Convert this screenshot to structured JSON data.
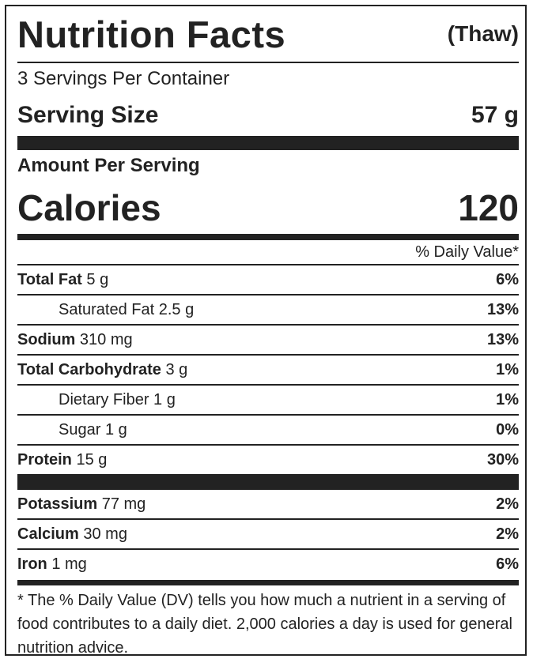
{
  "title": "Nutrition Facts",
  "variant": "(Thaw)",
  "servings": "3 Servings Per Container",
  "serving_size": {
    "label": "Serving Size",
    "value": "57 g"
  },
  "amount_per_serving": "Amount Per Serving",
  "calories": {
    "label": "Calories",
    "value": "120"
  },
  "dv_header": "% Daily Value*",
  "nutrients": [
    {
      "name": "Total Fat",
      "amount": "5 g",
      "dv": "6%",
      "children": [
        {
          "name": "Saturated Fat",
          "amount": "2.5 g",
          "dv": "13%"
        }
      ]
    },
    {
      "name": "Sodium",
      "amount": "310 mg",
      "dv": "13%"
    },
    {
      "name": "Total Carbohydrate",
      "amount": "3 g",
      "dv": "1%",
      "children": [
        {
          "name": "Dietary Fiber",
          "amount": "1 g",
          "dv": "1%"
        },
        {
          "name": "Sugar",
          "amount": "1 g",
          "dv": "0%"
        }
      ]
    },
    {
      "name": "Protein",
      "amount": "15 g",
      "dv": "30%"
    }
  ],
  "minerals": [
    {
      "name": "Potassium",
      "amount": "77 mg",
      "dv": "2%"
    },
    {
      "name": "Calcium",
      "amount": "30 mg",
      "dv": "2%"
    },
    {
      "name": "Iron",
      "amount": "1 mg",
      "dv": "6%"
    }
  ],
  "footnote": "* The % Daily Value (DV) tells you how much a nutrient in a serving of food contributes to a daily diet. 2,000 calories a day is used for general nutrition advice."
}
